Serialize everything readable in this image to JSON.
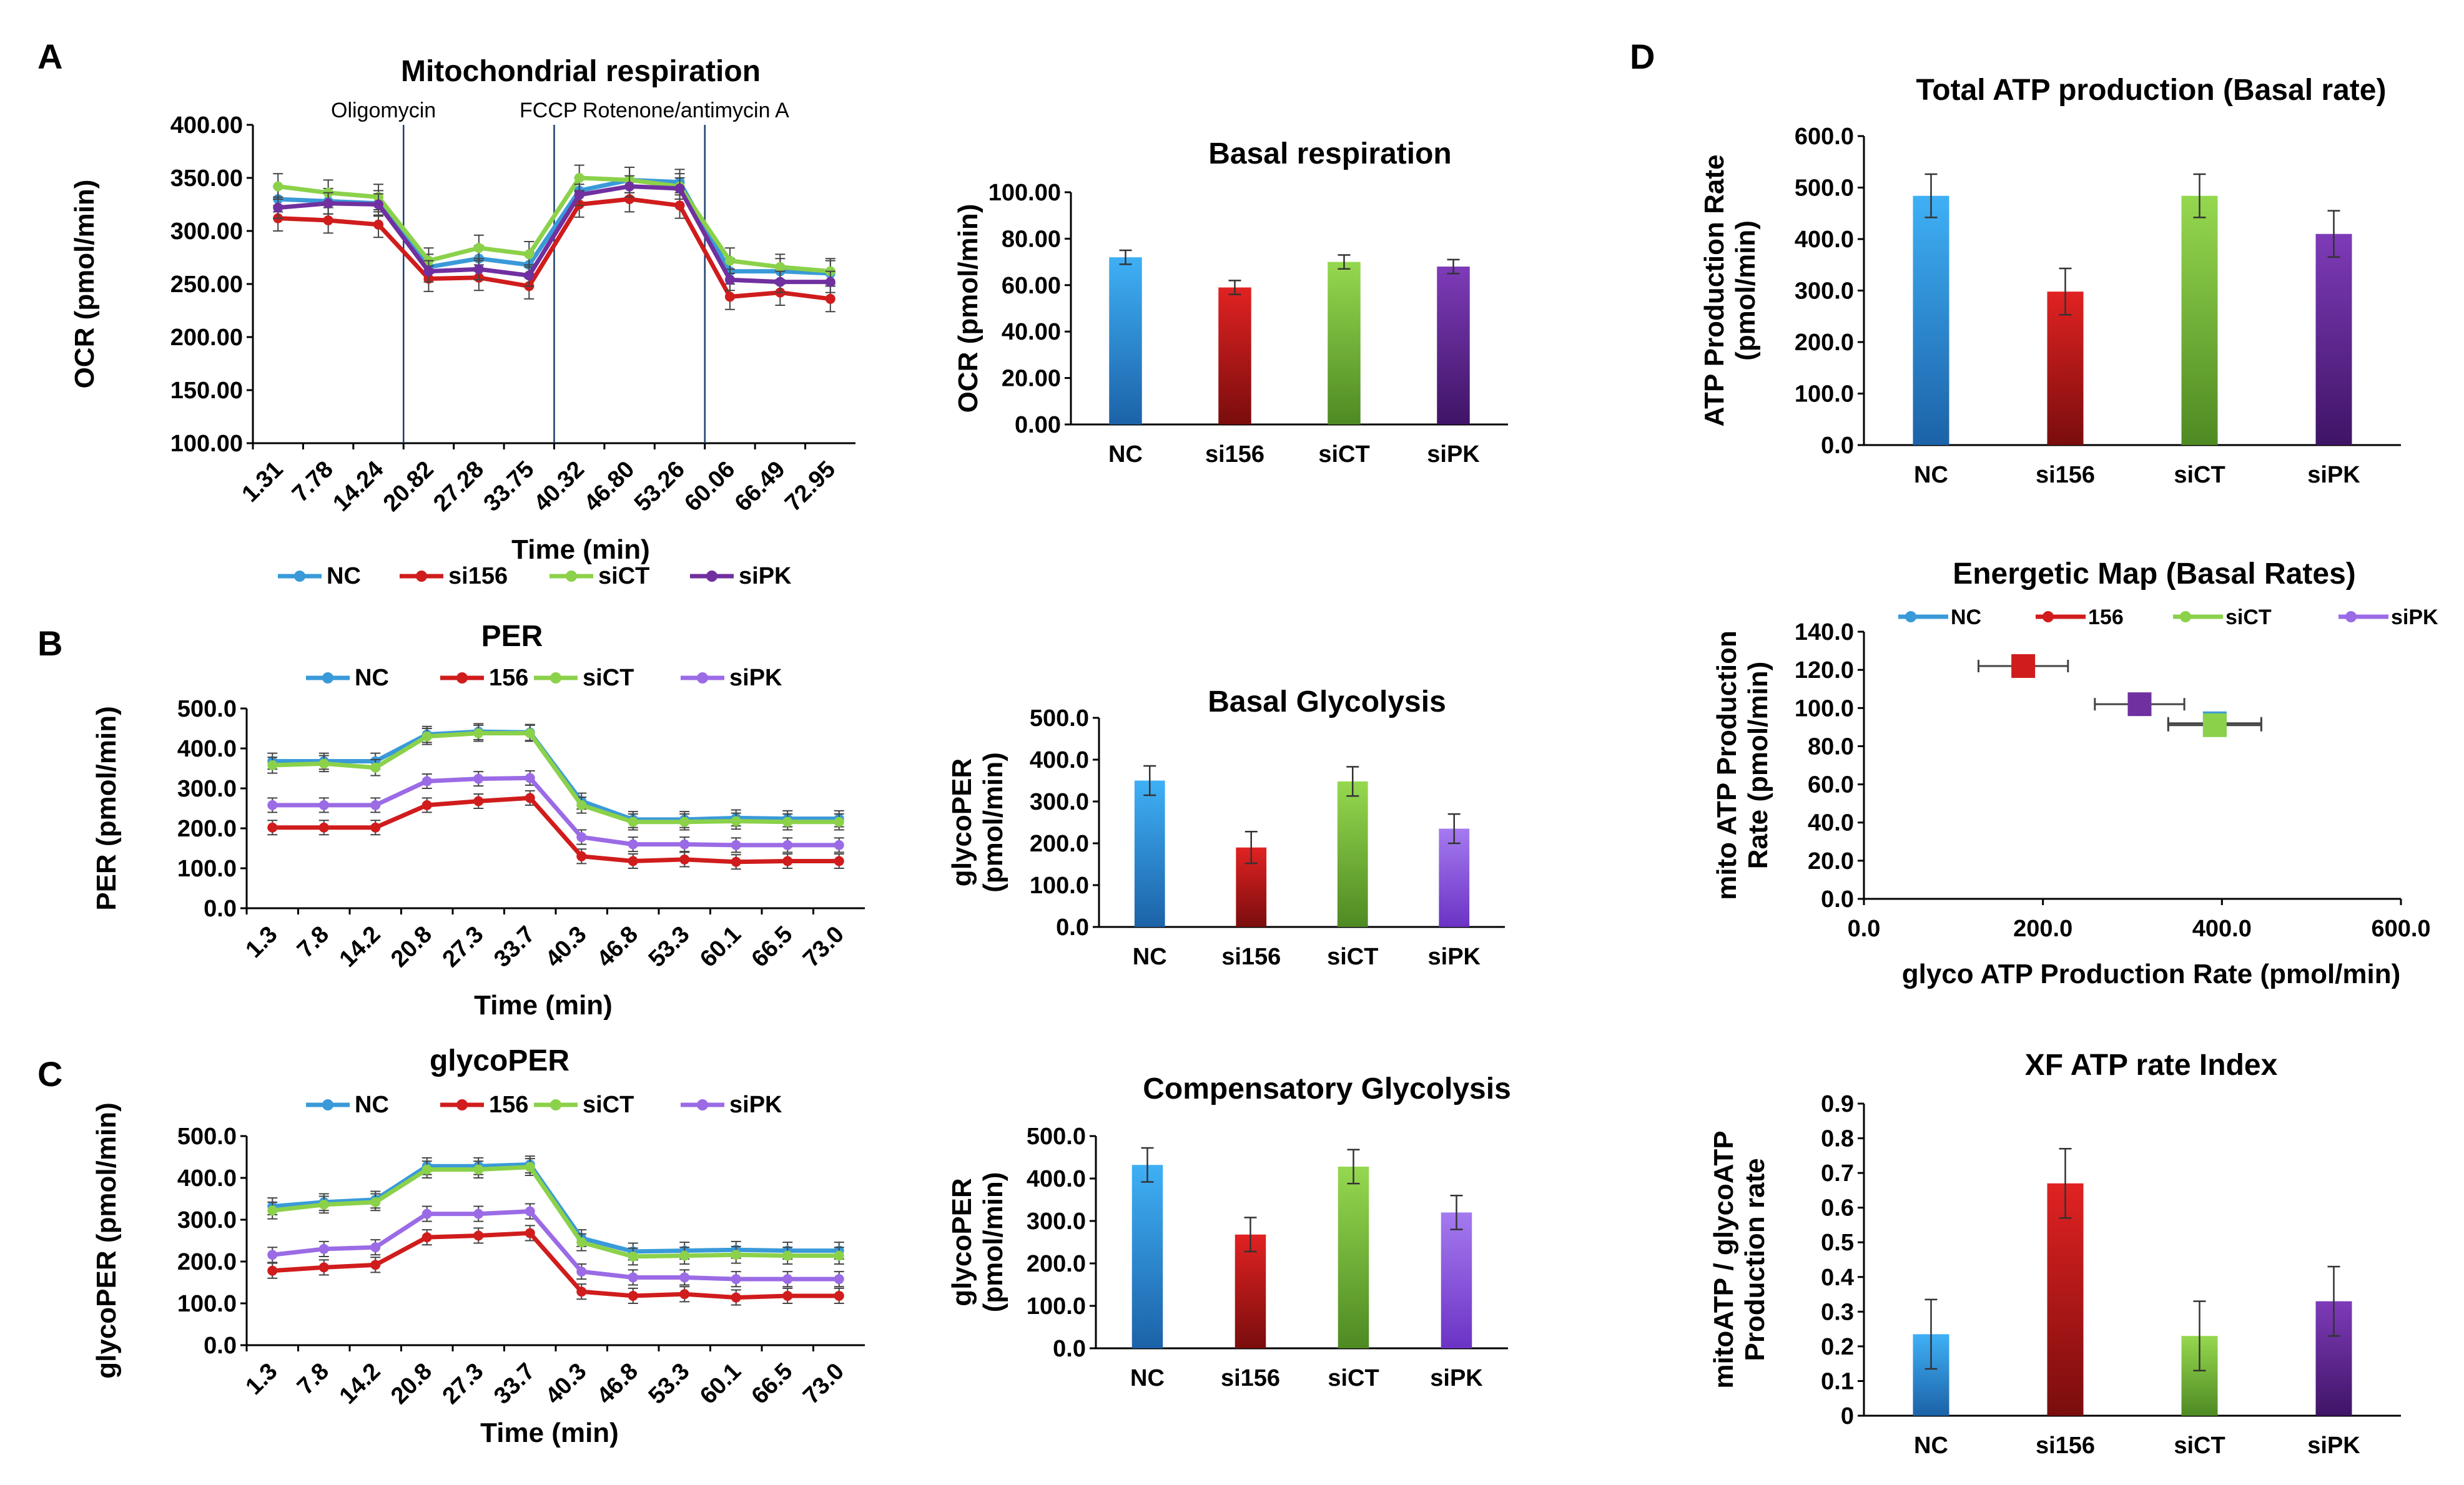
{
  "panel_labels": [
    "A",
    "B",
    "C",
    "D"
  ],
  "colors": {
    "NC": "#3a9ad9",
    "si156": "#d01c1c",
    "siCT": "#8bd14a",
    "siPK": "#7030a0",
    "siPK_light": "#9b6be6"
  },
  "chart_data": [
    {
      "id": "ocr",
      "type": "line",
      "title": "Mitochondrial respiration",
      "xlabel": "Time (min)",
      "ylabel": "OCR (pmol/min)",
      "ylim": [
        100,
        400
      ],
      "yticks": [
        "100.00",
        "150.00",
        "200.00",
        "250.00",
        "300.00",
        "350.00",
        "400.00"
      ],
      "x": [
        "1.31",
        "7.78",
        "14.24",
        "20.82",
        "27.28",
        "33.75",
        "40.32",
        "46.80",
        "53.26",
        "60.06",
        "66.49",
        "72.95"
      ],
      "annotations": [
        {
          "text": "Oligomycin",
          "after_index": 2
        },
        {
          "text": "FCCP",
          "after_index": 5
        },
        {
          "text": "Rotenone/antimycin A",
          "after_index": 8
        }
      ],
      "legend": [
        "NC",
        "si156",
        "siCT",
        "siPK"
      ],
      "series": [
        {
          "name": "NC",
          "values": [
            330,
            328,
            326,
            266,
            274,
            268,
            338,
            348,
            346,
            262,
            262,
            260
          ],
          "err": 12
        },
        {
          "name": "si156",
          "values": [
            312,
            310,
            306,
            255,
            256,
            248,
            325,
            330,
            324,
            238,
            242,
            236
          ],
          "err": 12
        },
        {
          "name": "siCT",
          "values": [
            342,
            336,
            332,
            272,
            284,
            278,
            350,
            348,
            342,
            272,
            266,
            262
          ],
          "err": 12
        },
        {
          "name": "siPK",
          "values": [
            322,
            326,
            325,
            262,
            264,
            258,
            334,
            342,
            340,
            254,
            252,
            252
          ],
          "err": 10
        }
      ]
    },
    {
      "id": "basal_resp",
      "type": "bar",
      "title": "Basal respiration",
      "ylabel": "OCR (pmol/min)",
      "ylim": [
        0,
        100
      ],
      "yticks": [
        "0.00",
        "20.00",
        "40.00",
        "60.00",
        "80.00",
        "100.00"
      ],
      "categories": [
        "NC",
        "si156",
        "siCT",
        "siPK"
      ],
      "values": [
        72,
        59,
        70,
        68
      ],
      "err": [
        3,
        3,
        3,
        3
      ]
    },
    {
      "id": "per",
      "type": "line",
      "title": "PER",
      "xlabel": "Time (min)",
      "ylabel": "PER (pmol/min)",
      "ylim": [
        0,
        500
      ],
      "yticks": [
        "0.0",
        "100.0",
        "200.0",
        "300.0",
        "400.0",
        "500.0"
      ],
      "x": [
        "1.3",
        "7.8",
        "14.2",
        "20.8",
        "27.3",
        "33.7",
        "40.3",
        "46.8",
        "53.3",
        "60.1",
        "66.5",
        "73.0"
      ],
      "legend": [
        "NC",
        "156",
        "siCT",
        "siPK"
      ],
      "series": [
        {
          "name": "NC",
          "values": [
            368,
            368,
            368,
            435,
            442,
            440,
            268,
            222,
            222,
            226,
            224,
            224
          ],
          "err": 20
        },
        {
          "name": "156",
          "values": [
            202,
            202,
            202,
            258,
            268,
            276,
            130,
            118,
            122,
            116,
            118,
            118
          ],
          "err": 18
        },
        {
          "name": "siCT",
          "values": [
            358,
            362,
            352,
            430,
            438,
            438,
            258,
            216,
            216,
            218,
            216,
            216
          ],
          "err": 20
        },
        {
          "name": "siPK",
          "values": [
            258,
            258,
            258,
            318,
            324,
            326,
            178,
            160,
            160,
            158,
            158,
            158
          ],
          "err": 18
        }
      ]
    },
    {
      "id": "basal_glyc",
      "type": "bar",
      "title": "Basal Glycolysis",
      "ylabel": "glycoPER (pmol/min)",
      "ylim": [
        0,
        500
      ],
      "yticks": [
        "0.0",
        "100.0",
        "200.0",
        "300.0",
        "400.0",
        "500.0"
      ],
      "categories": [
        "NC",
        "si156",
        "siCT",
        "siPK"
      ],
      "values": [
        350,
        190,
        348,
        235
      ],
      "err": [
        35,
        38,
        35,
        35
      ]
    },
    {
      "id": "glycoper",
      "type": "line",
      "title": "glycoPER",
      "xlabel": "Time (min)",
      "ylabel": "glycoPER (pmol/min)",
      "ylim": [
        0,
        500
      ],
      "yticks": [
        "0.0",
        "100.0",
        "200.0",
        "300.0",
        "400.0",
        "500.0"
      ],
      "x": [
        "1.3",
        "7.8",
        "14.2",
        "20.8",
        "27.3",
        "33.7",
        "40.3",
        "46.8",
        "53.3",
        "60.1",
        "66.5",
        "73.0"
      ],
      "legend": [
        "NC",
        "156",
        "siCT",
        "siPK"
      ],
      "series": [
        {
          "name": "NC",
          "values": [
            332,
            342,
            348,
            428,
            428,
            432,
            256,
            224,
            226,
            228,
            226,
            226
          ],
          "err": 20
        },
        {
          "name": "156",
          "values": [
            178,
            186,
            192,
            258,
            262,
            268,
            128,
            118,
            122,
            114,
            118,
            118
          ],
          "err": 18
        },
        {
          "name": "siCT",
          "values": [
            322,
            336,
            342,
            420,
            420,
            426,
            246,
            212,
            214,
            216,
            214,
            214
          ],
          "err": 20
        },
        {
          "name": "siPK",
          "values": [
            216,
            230,
            234,
            314,
            314,
            320,
            176,
            162,
            162,
            158,
            158,
            158
          ],
          "err": 18
        }
      ]
    },
    {
      "id": "comp_glyc",
      "type": "bar",
      "title": "Compensatory Glycolysis",
      "ylabel": "glycoPER (pmol/min)",
      "ylim": [
        0,
        500
      ],
      "yticks": [
        "0.0",
        "100.0",
        "200.0",
        "300.0",
        "400.0",
        "500.0"
      ],
      "categories": [
        "NC",
        "si156",
        "siCT",
        "siPK"
      ],
      "values": [
        432,
        268,
        428,
        320
      ],
      "err": [
        40,
        40,
        40,
        40
      ]
    },
    {
      "id": "total_atp",
      "type": "bar",
      "title": "Total ATP production (Basal rate)",
      "ylabel": "ATP Production Rate (pmol/min)",
      "ylim": [
        0,
        600
      ],
      "yticks": [
        "0.0",
        "100.0",
        "200.0",
        "300.0",
        "400.0",
        "500.0",
        "600.0"
      ],
      "categories": [
        "NC",
        "si156",
        "siCT",
        "siPK"
      ],
      "values": [
        484,
        298,
        484,
        410
      ],
      "err": [
        42,
        45,
        42,
        45
      ]
    },
    {
      "id": "energetic_map",
      "type": "scatter",
      "title": "Energetic Map (Basal Rates)",
      "xlabel": "glyco ATP Production Rate (pmol/min)",
      "ylabel": "mito ATP Production Rate (pmol/min)",
      "xlim": [
        0,
        600
      ],
      "ylim": [
        0,
        140
      ],
      "xticks": [
        "0.0",
        "200.0",
        "400.0",
        "600.0"
      ],
      "yticks": [
        "0.0",
        "20.0",
        "40.0",
        "60.0",
        "80.0",
        "100.0",
        "120.0",
        "140.0"
      ],
      "legend": [
        "NC",
        "156",
        "siCT",
        "siPK"
      ],
      "points": [
        {
          "name": "NC",
          "x": 392,
          "y": 92,
          "xerr": 52,
          "yerr": 3
        },
        {
          "name": "156",
          "x": 178,
          "y": 122,
          "xerr": 50,
          "yerr": 4
        },
        {
          "name": "siCT",
          "x": 392,
          "y": 91,
          "xerr": 52,
          "yerr": 3
        },
        {
          "name": "siPK",
          "x": 308,
          "y": 102,
          "xerr": 50,
          "yerr": 3
        }
      ]
    },
    {
      "id": "xf_index",
      "type": "bar",
      "title": "XF ATP rate Index",
      "ylabel": "mitoATP / glycoATP Production rate",
      "ylim": [
        0,
        0.9
      ],
      "yticks": [
        "0",
        "0.1",
        "0.2",
        "0.3",
        "0.4",
        "0.5",
        "0.6",
        "0.7",
        "0.8",
        "0.9"
      ],
      "categories": [
        "NC",
        "si156",
        "siCT",
        "siPK"
      ],
      "values": [
        0.235,
        0.67,
        0.23,
        0.33
      ],
      "err": [
        0.1,
        0.1,
        0.1,
        0.1
      ]
    }
  ]
}
